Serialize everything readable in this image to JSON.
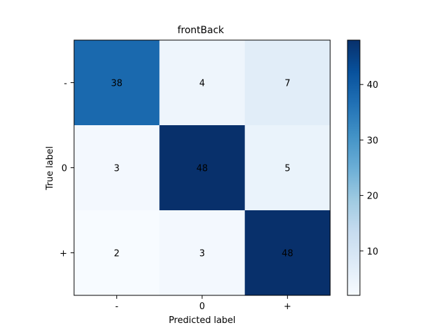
{
  "chart_data": {
    "type": "heatmap",
    "title": "frontBack",
    "xlabel": "Predicted label",
    "ylabel": "True label",
    "x_categories": [
      "-",
      "0",
      "+"
    ],
    "y_categories": [
      "-",
      "0",
      "+"
    ],
    "values": [
      [
        38,
        4,
        7
      ],
      [
        3,
        48,
        5
      ],
      [
        2,
        3,
        48
      ]
    ],
    "colorbar": {
      "ticks": [
        10,
        20,
        30,
        40
      ],
      "range": [
        2,
        48
      ],
      "colormap": "Blues"
    },
    "grid": false,
    "legend": "colorbar-right"
  }
}
